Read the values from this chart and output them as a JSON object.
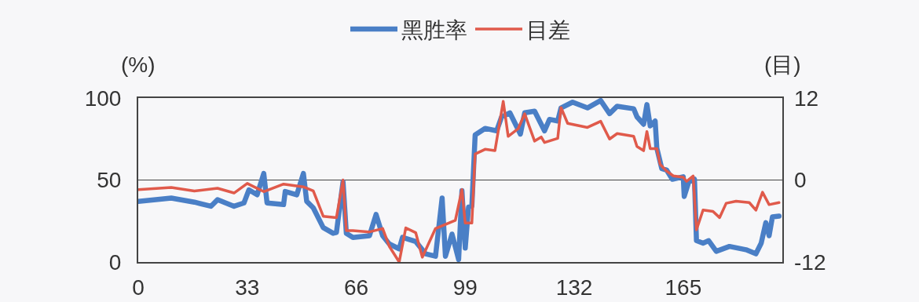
{
  "chart_data": {
    "type": "line",
    "ylabel": "(%)",
    "y2label": "(目)",
    "xlim": [
      0,
      195
    ],
    "xticks": [
      0,
      33,
      66,
      99,
      132,
      165
    ],
    "ylim": [
      0,
      100
    ],
    "yticks": [
      0,
      50,
      100
    ],
    "y2lim": [
      -12,
      12
    ],
    "y2ticks": [
      -12,
      0,
      12
    ],
    "grid": "y",
    "legend": "top",
    "marker": "none",
    "line_style": "solid",
    "series": [
      {
        "name": "黑胜率",
        "color": "#4a7fc6",
        "x": [
          0,
          10,
          17,
          22,
          24,
          29,
          32,
          33.5,
          36,
          38,
          39,
          44,
          44.5,
          48,
          50,
          51,
          53,
          56,
          59,
          60,
          62,
          63,
          65,
          70,
          72,
          74,
          76,
          79,
          80,
          84,
          87,
          90,
          92,
          93,
          95,
          97,
          98,
          99,
          100,
          101,
          102,
          105,
          108.5,
          110,
          112.5,
          115.7,
          117,
          120,
          123,
          124.5,
          127,
          128,
          131.5,
          136,
          140,
          142.7,
          145,
          150,
          151,
          153,
          154,
          155,
          156.5,
          157,
          158.5,
          160,
          161.7,
          165,
          165.3,
          166.7,
          168.4,
          169,
          171,
          172.7,
          175,
          179,
          184,
          187,
          188.6,
          190,
          191,
          192,
          194
        ],
        "values": [
          37,
          39,
          36.5,
          34,
          38,
          34,
          36,
          44,
          41,
          54,
          36,
          35,
          43,
          41,
          54,
          37,
          33,
          21,
          17.5,
          18,
          49,
          17.5,
          15,
          16,
          29,
          16,
          11,
          8,
          15,
          12.5,
          5,
          3.5,
          39,
          3.5,
          17,
          1.5,
          43.5,
          8.5,
          33.5,
          34,
          77.5,
          81.5,
          80,
          88.5,
          91,
          78,
          91,
          92,
          80,
          87,
          86,
          94,
          97.5,
          94,
          98.5,
          90.5,
          95,
          93.5,
          88.5,
          84,
          96,
          83,
          86,
          69.5,
          57,
          56,
          50.5,
          52,
          40,
          49,
          50.5,
          13,
          11.5,
          13,
          6.5,
          9.5,
          7.5,
          5,
          11.5,
          24,
          16,
          27.5,
          28
        ]
      },
      {
        "name": "目差",
        "color": "#e05a4b",
        "axis": "y2",
        "x": [
          0,
          10,
          17,
          24,
          29,
          33,
          38,
          44,
          50,
          53,
          56,
          60,
          62,
          63,
          65,
          70,
          74,
          76,
          79,
          81,
          84,
          86,
          90,
          96,
          98,
          99,
          101,
          102,
          105,
          108,
          110.5,
          112,
          115,
          117,
          120,
          122,
          123,
          127,
          128,
          130,
          136,
          140,
          142.7,
          145,
          150,
          151,
          153,
          154,
          155,
          157,
          158,
          160,
          162,
          165,
          166,
          168,
          169,
          171,
          174,
          176,
          178,
          181,
          185,
          187,
          189,
          191,
          194
        ],
        "values": [
          -1.4,
          -1.1,
          -1.6,
          -1.2,
          -1.9,
          -0.5,
          -1.7,
          -0.6,
          -1,
          -1.6,
          -5.3,
          -5.5,
          0,
          -7.4,
          -7.4,
          -7.6,
          -7.1,
          -9.7,
          -12,
          -7,
          -7.7,
          -11.3,
          -7.1,
          -5.9,
          -1.4,
          -6.3,
          -6.3,
          3.8,
          4.5,
          4.3,
          11.5,
          6.4,
          7.5,
          9.7,
          5.7,
          6.3,
          5.5,
          6.1,
          10.6,
          8.3,
          7.7,
          8.6,
          6,
          6.8,
          6.4,
          4.9,
          4.3,
          7.1,
          4.6,
          4.6,
          2.3,
          1.3,
          0.6,
          0.4,
          -0.2,
          0.6,
          -7.3,
          -4.4,
          -4.6,
          -5.5,
          -3.4,
          -3.1,
          -3.3,
          -4.4,
          -1.8,
          -3.6,
          -3.3
        ]
      }
    ]
  }
}
